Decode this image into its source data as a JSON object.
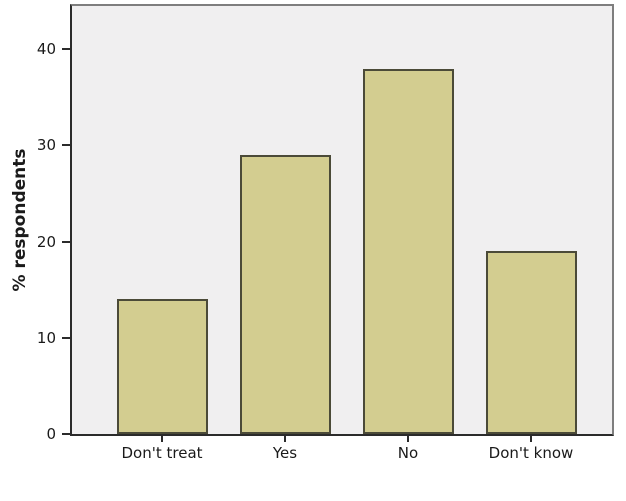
{
  "chart_data": {
    "type": "bar",
    "title": "",
    "categories": [
      "Don't treat",
      "Yes",
      "No",
      "Don't know"
    ],
    "values": [
      14,
      29,
      38,
      19
    ],
    "xlabel": "",
    "ylabel": "% respondents",
    "yticks": [
      0,
      10,
      20,
      30,
      40
    ],
    "ylim": [
      0,
      44.5
    ],
    "grid": false,
    "legend": "none",
    "colors": {
      "bar_fill": "#D3CD90",
      "bar_border": "#4B4A38",
      "plot_background": "#F0EFF0",
      "frame": "#7E7E7E",
      "axis": "#2B2B2B",
      "text": "#1A1A1A",
      "page_background": "#FFFFFF"
    }
  }
}
